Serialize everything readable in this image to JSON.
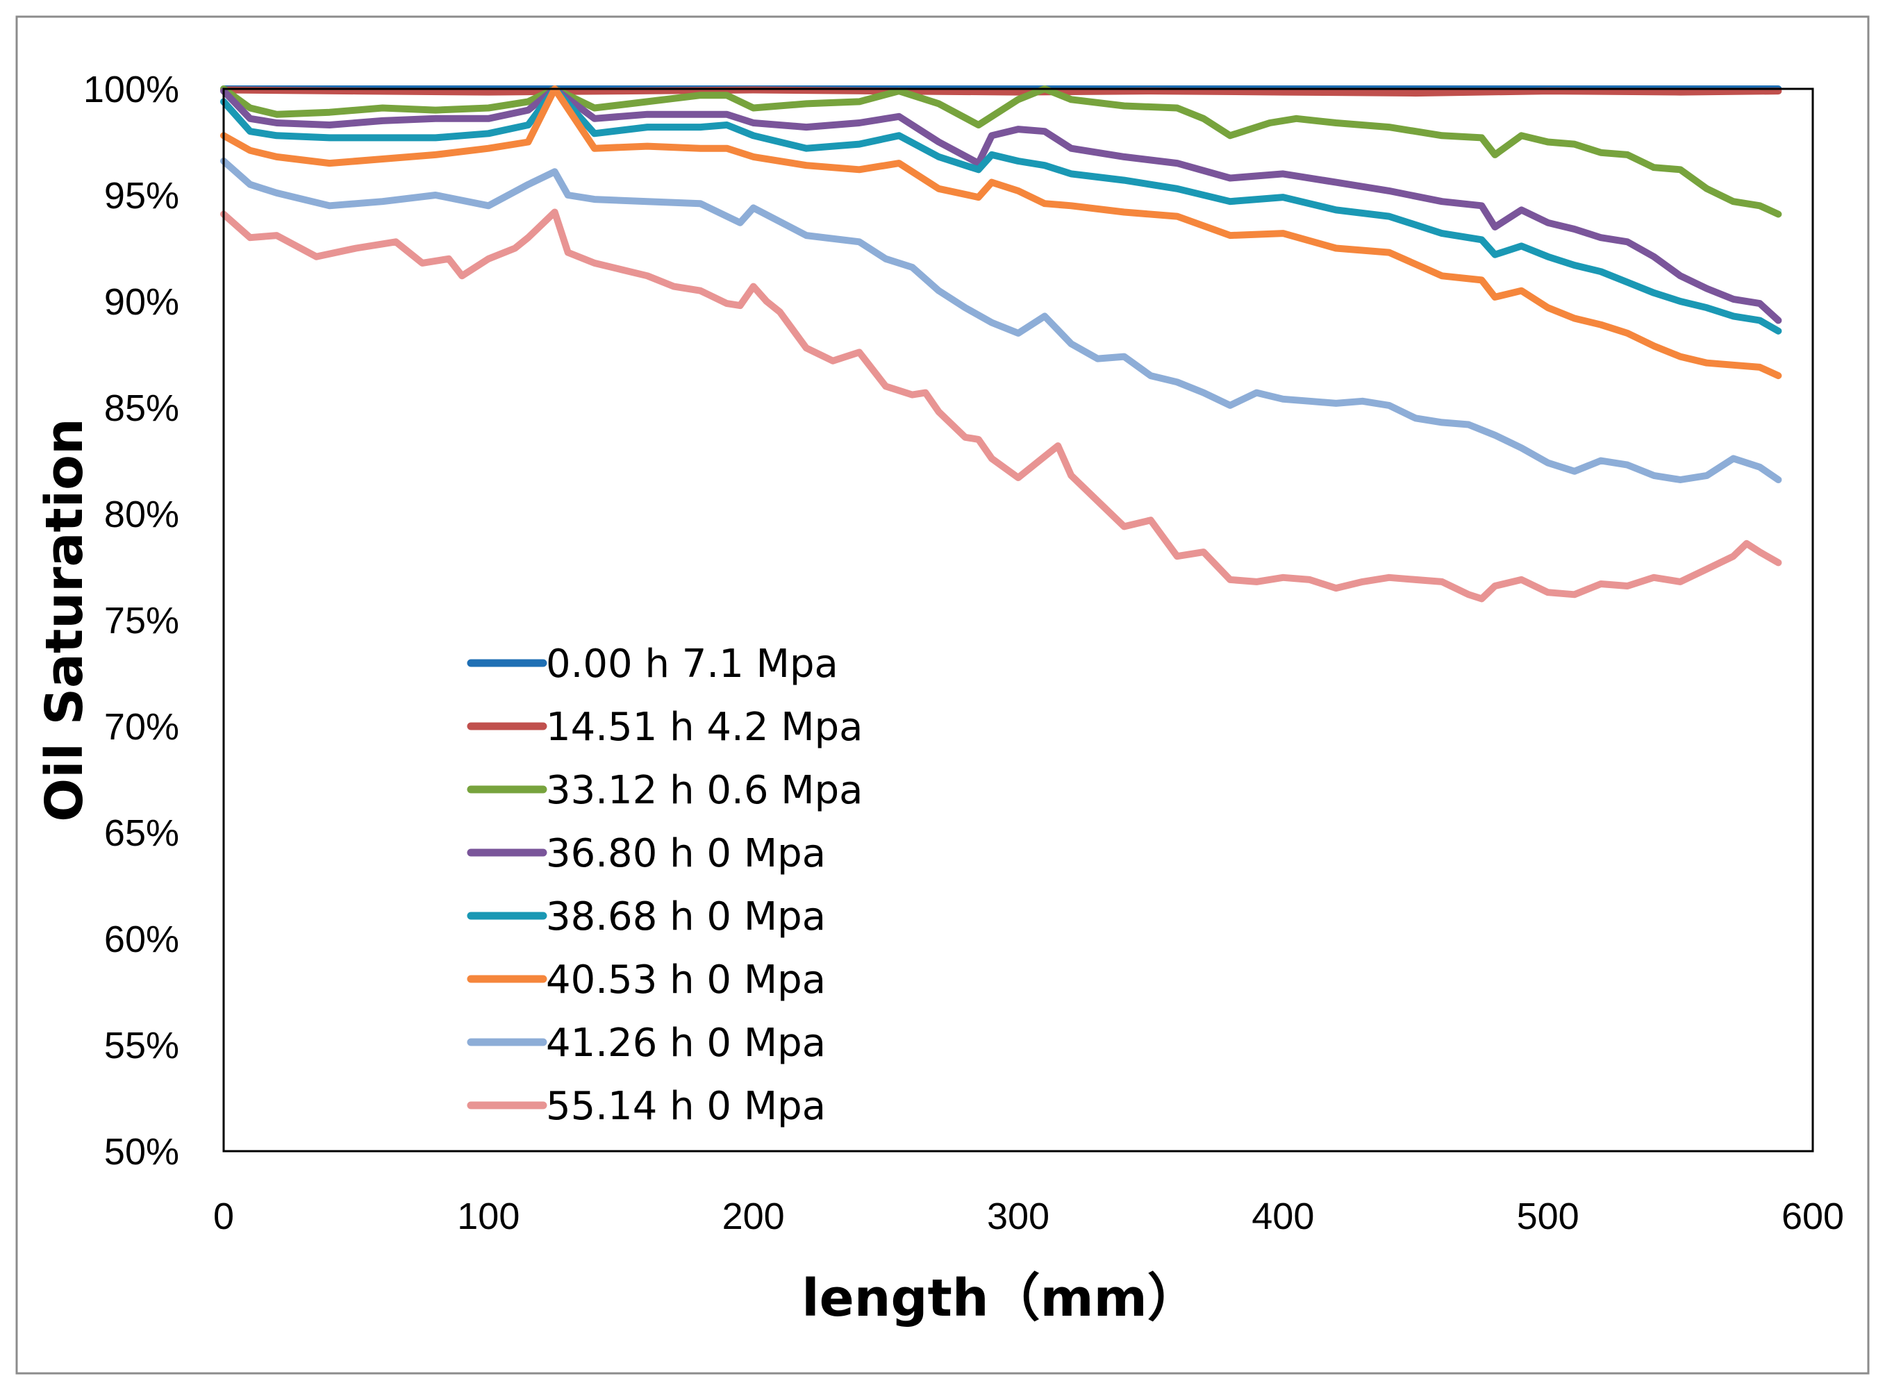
{
  "chart_data": {
    "type": "line",
    "title": "",
    "xlabel": "length（mm）",
    "ylabel": "Oil Saturation",
    "xlim": [
      0,
      600
    ],
    "ylim": [
      0.5,
      1.0
    ],
    "x_ticks": [
      0,
      100,
      200,
      300,
      400,
      500,
      600
    ],
    "x_tick_labels": [
      "0",
      "100",
      "200",
      "300",
      "400",
      "500",
      "600"
    ],
    "y_ticks": [
      0.5,
      0.55,
      0.6,
      0.65,
      0.7,
      0.75,
      0.8,
      0.85,
      0.9,
      0.95,
      1.0
    ],
    "y_tick_labels": [
      "50%",
      "55%",
      "60%",
      "65%",
      "70%",
      "75%",
      "80%",
      "85%",
      "90%",
      "95%",
      "100%"
    ],
    "grid": false,
    "legend_position": "center-left",
    "series": [
      {
        "name": "0.00 h 7.1 Mpa",
        "color": "#1F6FB4",
        "x": [
          0,
          100,
          200,
          300,
          400,
          500,
          587
        ],
        "y": [
          1.0,
          1.0,
          1.0,
          1.0,
          1.0,
          1.0,
          1.0
        ]
      },
      {
        "name": "14.51 h 4.2 Mpa",
        "color": "#C0504D",
        "x": [
          0,
          50,
          100,
          150,
          200,
          250,
          300,
          350,
          400,
          450,
          500,
          550,
          587
        ],
        "y": [
          0.9995,
          0.999,
          0.9985,
          0.999,
          0.9995,
          0.999,
          0.9985,
          0.999,
          0.9985,
          0.998,
          0.999,
          0.9985,
          0.999
        ]
      },
      {
        "name": "33.12 h 0.6 Mpa",
        "color": "#77A33D",
        "x": [
          0,
          10,
          20,
          40,
          60,
          80,
          100,
          115,
          125,
          140,
          160,
          180,
          190,
          200,
          220,
          240,
          255,
          270,
          285,
          300,
          310,
          320,
          340,
          360,
          370,
          380,
          395,
          405,
          420,
          440,
          460,
          475,
          480,
          490,
          500,
          510,
          520,
          530,
          540,
          550,
          560,
          570,
          580,
          587
        ],
        "y": [
          1.0,
          0.991,
          0.988,
          0.989,
          0.991,
          0.99,
          0.991,
          0.994,
          1.0,
          0.991,
          0.994,
          0.997,
          0.997,
          0.991,
          0.993,
          0.994,
          0.999,
          0.993,
          0.983,
          0.995,
          1.0,
          0.995,
          0.992,
          0.991,
          0.986,
          0.978,
          0.984,
          0.986,
          0.984,
          0.982,
          0.978,
          0.977,
          0.969,
          0.978,
          0.975,
          0.974,
          0.97,
          0.969,
          0.963,
          0.962,
          0.953,
          0.947,
          0.945,
          0.941
        ]
      },
      {
        "name": "36.80 h 0 Mpa",
        "color": "#7A559A",
        "x": [
          0,
          10,
          20,
          40,
          60,
          80,
          100,
          115,
          125,
          140,
          160,
          180,
          190,
          200,
          220,
          240,
          255,
          270,
          285,
          290,
          300,
          310,
          320,
          340,
          360,
          380,
          400,
          420,
          440,
          460,
          475,
          480,
          490,
          500,
          510,
          520,
          530,
          540,
          550,
          560,
          570,
          580,
          587
        ],
        "y": [
          0.999,
          0.986,
          0.984,
          0.983,
          0.985,
          0.986,
          0.986,
          0.99,
          1.0,
          0.986,
          0.988,
          0.988,
          0.988,
          0.984,
          0.982,
          0.984,
          0.987,
          0.975,
          0.965,
          0.978,
          0.981,
          0.98,
          0.972,
          0.968,
          0.965,
          0.958,
          0.96,
          0.956,
          0.952,
          0.947,
          0.945,
          0.935,
          0.943,
          0.937,
          0.934,
          0.93,
          0.928,
          0.921,
          0.912,
          0.906,
          0.901,
          0.899,
          0.891
        ]
      },
      {
        "name": "38.68 h 0 Mpa",
        "color": "#1A98B4",
        "x": [
          0,
          10,
          20,
          40,
          60,
          80,
          100,
          115,
          125,
          140,
          160,
          180,
          190,
          200,
          220,
          240,
          255,
          270,
          285,
          290,
          300,
          310,
          320,
          340,
          360,
          380,
          400,
          420,
          440,
          460,
          475,
          480,
          490,
          500,
          510,
          520,
          530,
          540,
          550,
          560,
          570,
          580,
          587
        ],
        "y": [
          0.994,
          0.98,
          0.978,
          0.977,
          0.977,
          0.977,
          0.979,
          0.983,
          1.0,
          0.979,
          0.982,
          0.982,
          0.983,
          0.978,
          0.972,
          0.974,
          0.978,
          0.968,
          0.962,
          0.969,
          0.966,
          0.964,
          0.96,
          0.957,
          0.953,
          0.947,
          0.949,
          0.943,
          0.94,
          0.932,
          0.929,
          0.922,
          0.926,
          0.921,
          0.917,
          0.914,
          0.909,
          0.904,
          0.9,
          0.897,
          0.893,
          0.891,
          0.886
        ]
      },
      {
        "name": "40.53 h 0 Mpa",
        "color": "#F5863C",
        "x": [
          0,
          10,
          20,
          40,
          60,
          80,
          100,
          115,
          125,
          140,
          160,
          180,
          190,
          200,
          220,
          240,
          255,
          270,
          285,
          290,
          300,
          310,
          320,
          340,
          360,
          380,
          400,
          420,
          440,
          460,
          475,
          480,
          490,
          500,
          510,
          520,
          530,
          540,
          550,
          560,
          570,
          580,
          587
        ],
        "y": [
          0.978,
          0.971,
          0.968,
          0.965,
          0.967,
          0.969,
          0.972,
          0.975,
          1.0,
          0.972,
          0.973,
          0.972,
          0.972,
          0.968,
          0.964,
          0.962,
          0.965,
          0.953,
          0.949,
          0.956,
          0.952,
          0.946,
          0.945,
          0.942,
          0.94,
          0.931,
          0.932,
          0.925,
          0.923,
          0.912,
          0.91,
          0.902,
          0.905,
          0.897,
          0.892,
          0.889,
          0.885,
          0.879,
          0.874,
          0.871,
          0.87,
          0.869,
          0.865
        ]
      },
      {
        "name": "41.26 h 0 Mpa",
        "color": "#8DADD7",
        "x": [
          0,
          10,
          20,
          40,
          60,
          80,
          100,
          115,
          125,
          130,
          140,
          160,
          180,
          195,
          200,
          220,
          240,
          250,
          260,
          270,
          280,
          290,
          300,
          310,
          320,
          330,
          340,
          350,
          360,
          370,
          380,
          390,
          400,
          410,
          420,
          430,
          440,
          450,
          460,
          470,
          480,
          490,
          500,
          510,
          520,
          530,
          540,
          550,
          560,
          570,
          580,
          587
        ],
        "y": [
          0.966,
          0.955,
          0.951,
          0.945,
          0.947,
          0.95,
          0.945,
          0.955,
          0.961,
          0.95,
          0.948,
          0.947,
          0.946,
          0.937,
          0.944,
          0.931,
          0.928,
          0.92,
          0.916,
          0.905,
          0.897,
          0.89,
          0.885,
          0.893,
          0.88,
          0.873,
          0.874,
          0.865,
          0.862,
          0.857,
          0.851,
          0.857,
          0.854,
          0.853,
          0.852,
          0.853,
          0.851,
          0.845,
          0.843,
          0.842,
          0.837,
          0.831,
          0.824,
          0.82,
          0.825,
          0.823,
          0.818,
          0.816,
          0.818,
          0.826,
          0.822,
          0.816
        ]
      },
      {
        "name": "55.14 h 0 Mpa",
        "color": "#E89493",
        "x": [
          0,
          10,
          20,
          35,
          50,
          65,
          75,
          85,
          90,
          100,
          110,
          115,
          125,
          130,
          140,
          150,
          160,
          170,
          180,
          190,
          195,
          200,
          205,
          210,
          220,
          230,
          240,
          250,
          260,
          265,
          270,
          280,
          285,
          290,
          300,
          310,
          315,
          320,
          330,
          340,
          350,
          360,
          370,
          380,
          390,
          400,
          410,
          420,
          430,
          440,
          450,
          460,
          470,
          475,
          480,
          490,
          500,
          510,
          520,
          530,
          540,
          550,
          560,
          570,
          575,
          580,
          587
        ],
        "y": [
          0.941,
          0.93,
          0.931,
          0.921,
          0.925,
          0.928,
          0.918,
          0.92,
          0.912,
          0.92,
          0.925,
          0.93,
          0.942,
          0.923,
          0.918,
          0.915,
          0.912,
          0.907,
          0.905,
          0.899,
          0.898,
          0.907,
          0.9,
          0.895,
          0.878,
          0.872,
          0.876,
          0.86,
          0.856,
          0.857,
          0.848,
          0.836,
          0.835,
          0.826,
          0.817,
          0.827,
          0.832,
          0.818,
          0.806,
          0.794,
          0.797,
          0.78,
          0.782,
          0.769,
          0.768,
          0.77,
          0.769,
          0.765,
          0.768,
          0.77,
          0.769,
          0.768,
          0.762,
          0.76,
          0.766,
          0.769,
          0.763,
          0.762,
          0.767,
          0.766,
          0.77,
          0.768,
          0.774,
          0.78,
          0.786,
          0.782,
          0.777
        ]
      }
    ]
  }
}
